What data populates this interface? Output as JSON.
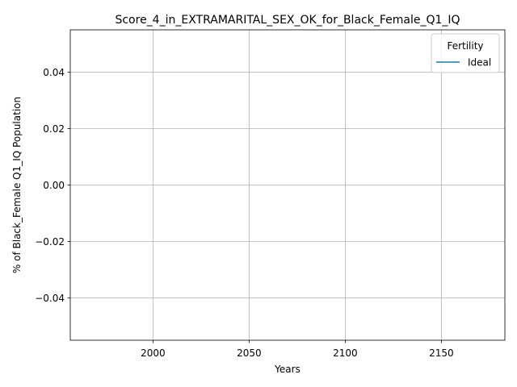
{
  "chart_data": {
    "type": "line",
    "title": "Score_4_in_EXTRAMARITAL_SEX_OK_for_Black_Female_Q1_IQ",
    "xlabel": "Years",
    "ylabel": "% of Black_Female Q1_IQ Population",
    "xlim": [
      1957,
      2183
    ],
    "ylim": [
      -0.055,
      0.055
    ],
    "xticks": [
      2000,
      2050,
      2100,
      2150
    ],
    "xtick_labels": [
      "2000",
      "2050",
      "2100",
      "2150"
    ],
    "yticks": [
      -0.04,
      -0.02,
      0.0,
      0.02,
      0.04
    ],
    "ytick_labels": [
      "−0.04",
      "−0.02",
      "0.00",
      "0.02",
      "0.04"
    ],
    "grid": true,
    "legend": {
      "title": "Fertility",
      "placement": "top-right"
    },
    "series": [
      {
        "name": "Ideal",
        "color": "#1f77b4",
        "x": [],
        "values": []
      }
    ]
  }
}
